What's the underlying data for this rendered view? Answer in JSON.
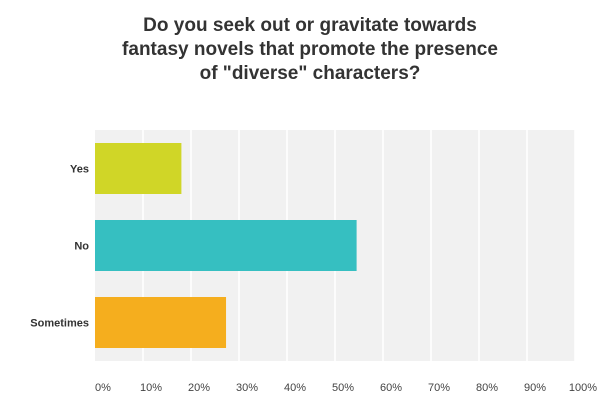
{
  "chart_data": {
    "type": "bar",
    "orientation": "horizontal",
    "title": "Do you seek out or gravitate towards\nfantasy novels that promote the presence\nof \"diverse\" characters?",
    "categories": [
      "Yes",
      "No",
      "Sometimes"
    ],
    "values": [
      18,
      54.5,
      27.3
    ],
    "value_unit": "%",
    "colors": [
      "#d0d627",
      "#36bfc1",
      "#f5ae1e"
    ],
    "xlim": [
      0,
      100
    ],
    "xticks": [
      "0%",
      "10%",
      "20%",
      "30%",
      "40%",
      "50%",
      "60%",
      "70%",
      "80%",
      "90%",
      "100%"
    ],
    "grid": true,
    "background": "#f1f1f1",
    "legend": "none"
  }
}
